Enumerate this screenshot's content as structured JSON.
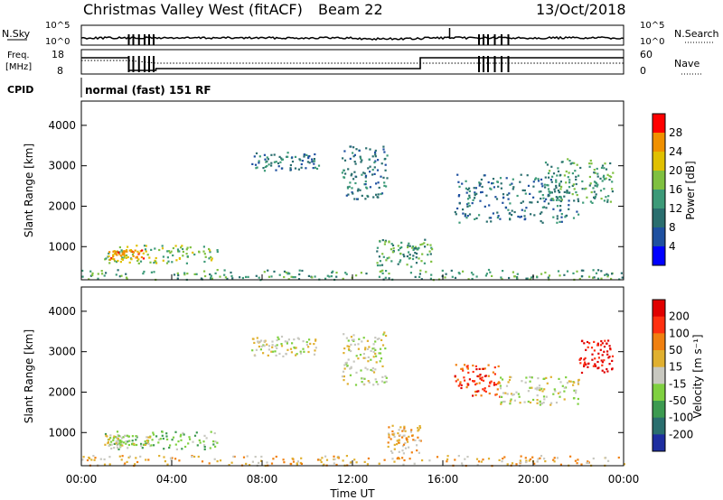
{
  "header": {
    "station": "Christmas Valley West (fitACF)",
    "beam": "Beam 22",
    "date": "13/Oct/2018"
  },
  "top_panels": {
    "nsky_label": "N.Sky",
    "nsky_ticks": [
      "10^5",
      "10^0"
    ],
    "nsearch_label": "N.Search",
    "nsearch_ticks": [
      "10^5",
      "10^0"
    ],
    "freq_label_1": "Freq.",
    "freq_label_2": "[MHz]",
    "freq_ticks": [
      "18",
      "8"
    ],
    "nave_label": "Nave",
    "nave_ticks": [
      "60",
      "0"
    ],
    "cpid_label": "CPID",
    "cpid_value": "normal (fast) 151 RF"
  },
  "chart_data": [
    {
      "type": "heatmap",
      "title": "Power",
      "ylabel": "Slant Range [km]",
      "yticks": [
        "1000",
        "2000",
        "3000",
        "4000"
      ],
      "ylim": [
        180,
        4600
      ],
      "colorbar_label": "Power [dB]",
      "colorbar_ticks": [
        "4",
        "8",
        "12",
        "16",
        "20",
        "24",
        "28"
      ],
      "colors": [
        "#0000ff",
        "#1e50a0",
        "#2a6e6e",
        "#3c9a78",
        "#7fc040",
        "#e0c000",
        "#f09000",
        "#ff0000"
      ],
      "regions": [
        {
          "t": [
            1.0,
            6.0
          ],
          "r": [
            600,
            1050
          ],
          "level": 4
        },
        {
          "t": [
            1.2,
            2.8
          ],
          "r": [
            700,
            950
          ],
          "level": 6
        },
        {
          "t": [
            7.5,
            10.5
          ],
          "r": [
            2900,
            3350
          ],
          "level": 2
        },
        {
          "t": [
            11.5,
            13.5
          ],
          "r": [
            2200,
            3500
          ],
          "level": 2
        },
        {
          "t": [
            13.0,
            15.5
          ],
          "r": [
            500,
            1200
          ],
          "level": 3
        },
        {
          "t": [
            16.5,
            22.0
          ],
          "r": [
            1600,
            2800
          ],
          "level": 2
        },
        {
          "t": [
            20.5,
            23.5
          ],
          "r": [
            2100,
            3200
          ],
          "level": 3
        },
        {
          "t": [
            0.0,
            24.0
          ],
          "r": [
            200,
            450
          ],
          "level": 3
        }
      ]
    },
    {
      "type": "heatmap",
      "title": "Velocity",
      "ylabel": "Slant Range [km]",
      "yticks": [
        "1000",
        "2000",
        "3000",
        "4000"
      ],
      "ylim": [
        180,
        4600
      ],
      "colorbar_label": "Velocity [m s⁻¹]",
      "colorbar_ticks": [
        "200",
        "100",
        "50",
        "15",
        "-15",
        "-50",
        "-100",
        "-200"
      ],
      "colors": [
        "#1e2ea0",
        "#2a6e6e",
        "#3c9a50",
        "#7fd040",
        "#c8c8c0",
        "#e0b030",
        "#f08010",
        "#ff3010",
        "#e00000"
      ],
      "regions": [
        {
          "t": [
            1.0,
            6.0
          ],
          "r": [
            600,
            1050
          ],
          "level": 3
        },
        {
          "t": [
            1.0,
            3.0
          ],
          "r": [
            700,
            950
          ],
          "level": 4
        },
        {
          "t": [
            7.5,
            10.5
          ],
          "r": [
            2900,
            3400
          ],
          "level": 4
        },
        {
          "t": [
            11.5,
            13.5
          ],
          "r": [
            2200,
            3500
          ],
          "level": 4
        },
        {
          "t": [
            13.5,
            15.0
          ],
          "r": [
            500,
            1200
          ],
          "level": 5
        },
        {
          "t": [
            16.5,
            18.5
          ],
          "r": [
            1900,
            2700
          ],
          "level": 7
        },
        {
          "t": [
            18.5,
            22.0
          ],
          "r": [
            1700,
            2400
          ],
          "level": 4
        },
        {
          "t": [
            22.0,
            23.5
          ],
          "r": [
            2500,
            3300
          ],
          "level": 8
        },
        {
          "t": [
            0.0,
            24.0
          ],
          "r": [
            200,
            450
          ],
          "level": 5
        }
      ]
    }
  ],
  "xaxis": {
    "ticks": [
      "00:00",
      "04:00",
      "08:00",
      "12:00",
      "16:00",
      "20:00",
      "00:00"
    ],
    "label": "Time UT"
  }
}
